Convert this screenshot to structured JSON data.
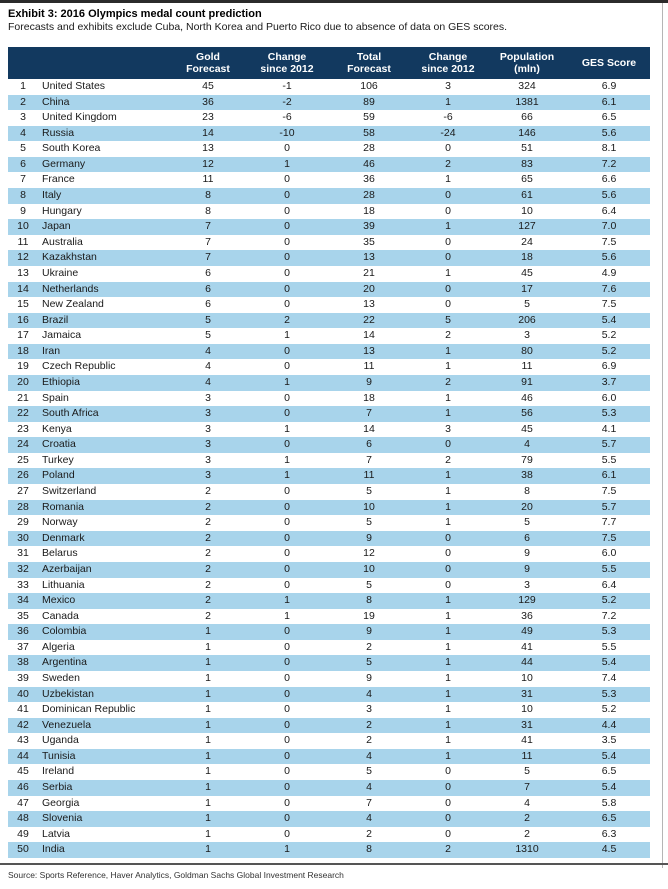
{
  "exhibit": {
    "title": "Exhibit 3: 2016 Olympics medal count prediction",
    "subtitle": "Forecasts and exhibits exclude Cuba, North Korea and Puerto Rico due to absence of data on GES scores.",
    "source": "Source: Sports Reference, Haver Analytics, Goldman Sachs Global Investment Research"
  },
  "colors": {
    "header_bg": "#12395F",
    "header_text": "#FFFFFF",
    "stripe": "#A8D4EB",
    "body_text": "#1A1A1A",
    "top_rule": "#2B2B2B"
  },
  "table": {
    "headers": [
      {
        "lines": []
      },
      {
        "lines": []
      },
      {
        "lines": [
          "Gold",
          "Forecast"
        ]
      },
      {
        "lines": [
          "Change",
          "since 2012"
        ]
      },
      {
        "lines": [
          "Total",
          "Forecast"
        ]
      },
      {
        "lines": [
          "Change",
          "since 2012"
        ]
      },
      {
        "lines": [
          "Population",
          "(mln)"
        ]
      },
      {
        "lines": [
          "GES Score"
        ]
      }
    ],
    "col_names": [
      "rank-cell",
      "country-cell",
      "gold-forecast-cell",
      "gold-change-cell",
      "total-forecast-cell",
      "total-change-cell",
      "population-cell",
      "ges-score-cell"
    ],
    "col_classes": [
      "col-rank",
      "col-country",
      "col-gold",
      "col-chg1",
      "col-total",
      "col-chg2",
      "col-pop",
      "col-ges"
    ],
    "rows": [
      [
        "1",
        "United States",
        "45",
        "-1",
        "106",
        "3",
        "324",
        "6.9"
      ],
      [
        "2",
        "China",
        "36",
        "-2",
        "89",
        "1",
        "1381",
        "6.1"
      ],
      [
        "3",
        "United Kingdom",
        "23",
        "-6",
        "59",
        "-6",
        "66",
        "6.5"
      ],
      [
        "4",
        "Russia",
        "14",
        "-10",
        "58",
        "-24",
        "146",
        "5.6"
      ],
      [
        "5",
        "South Korea",
        "13",
        "0",
        "28",
        "0",
        "51",
        "8.1"
      ],
      [
        "6",
        "Germany",
        "12",
        "1",
        "46",
        "2",
        "83",
        "7.2"
      ],
      [
        "7",
        "France",
        "11",
        "0",
        "36",
        "1",
        "65",
        "6.6"
      ],
      [
        "8",
        "Italy",
        "8",
        "0",
        "28",
        "0",
        "61",
        "5.6"
      ],
      [
        "9",
        "Hungary",
        "8",
        "0",
        "18",
        "0",
        "10",
        "6.4"
      ],
      [
        "10",
        "Japan",
        "7",
        "0",
        "39",
        "1",
        "127",
        "7.0"
      ],
      [
        "11",
        "Australia",
        "7",
        "0",
        "35",
        "0",
        "24",
        "7.5"
      ],
      [
        "12",
        "Kazakhstan",
        "7",
        "0",
        "13",
        "0",
        "18",
        "5.6"
      ],
      [
        "13",
        "Ukraine",
        "6",
        "0",
        "21",
        "1",
        "45",
        "4.9"
      ],
      [
        "14",
        "Netherlands",
        "6",
        "0",
        "20",
        "0",
        "17",
        "7.6"
      ],
      [
        "15",
        "New Zealand",
        "6",
        "0",
        "13",
        "0",
        "5",
        "7.5"
      ],
      [
        "16",
        "Brazil",
        "5",
        "2",
        "22",
        "5",
        "206",
        "5.4"
      ],
      [
        "17",
        "Jamaica",
        "5",
        "1",
        "14",
        "2",
        "3",
        "5.2"
      ],
      [
        "18",
        "Iran",
        "4",
        "0",
        "13",
        "1",
        "80",
        "5.2"
      ],
      [
        "19",
        "Czech Republic",
        "4",
        "0",
        "11",
        "1",
        "11",
        "6.9"
      ],
      [
        "20",
        "Ethiopia",
        "4",
        "1",
        "9",
        "2",
        "91",
        "3.7"
      ],
      [
        "21",
        "Spain",
        "3",
        "0",
        "18",
        "1",
        "46",
        "6.0"
      ],
      [
        "22",
        "South Africa",
        "3",
        "0",
        "7",
        "1",
        "56",
        "5.3"
      ],
      [
        "23",
        "Kenya",
        "3",
        "1",
        "14",
        "3",
        "45",
        "4.1"
      ],
      [
        "24",
        "Croatia",
        "3",
        "0",
        "6",
        "0",
        "4",
        "5.7"
      ],
      [
        "25",
        "Turkey",
        "3",
        "1",
        "7",
        "2",
        "79",
        "5.5"
      ],
      [
        "26",
        "Poland",
        "3",
        "1",
        "11",
        "1",
        "38",
        "6.1"
      ],
      [
        "27",
        "Switzerland",
        "2",
        "0",
        "5",
        "1",
        "8",
        "7.5"
      ],
      [
        "28",
        "Romania",
        "2",
        "0",
        "10",
        "1",
        "20",
        "5.7"
      ],
      [
        "29",
        "Norway",
        "2",
        "0",
        "5",
        "1",
        "5",
        "7.7"
      ],
      [
        "30",
        "Denmark",
        "2",
        "0",
        "9",
        "0",
        "6",
        "7.5"
      ],
      [
        "31",
        "Belarus",
        "2",
        "0",
        "12",
        "0",
        "9",
        "6.0"
      ],
      [
        "32",
        "Azerbaijan",
        "2",
        "0",
        "10",
        "0",
        "9",
        "5.5"
      ],
      [
        "33",
        "Lithuania",
        "2",
        "0",
        "5",
        "0",
        "3",
        "6.4"
      ],
      [
        "34",
        "Mexico",
        "2",
        "1",
        "8",
        "1",
        "129",
        "5.2"
      ],
      [
        "35",
        "Canada",
        "2",
        "1",
        "19",
        "1",
        "36",
        "7.2"
      ],
      [
        "36",
        "Colombia",
        "1",
        "0",
        "9",
        "1",
        "49",
        "5.3"
      ],
      [
        "37",
        "Algeria",
        "1",
        "0",
        "2",
        "1",
        "41",
        "5.5"
      ],
      [
        "38",
        "Argentina",
        "1",
        "0",
        "5",
        "1",
        "44",
        "5.4"
      ],
      [
        "39",
        "Sweden",
        "1",
        "0",
        "9",
        "1",
        "10",
        "7.4"
      ],
      [
        "40",
        "Uzbekistan",
        "1",
        "0",
        "4",
        "1",
        "31",
        "5.3"
      ],
      [
        "41",
        "Dominican Republic",
        "1",
        "0",
        "3",
        "1",
        "10",
        "5.2"
      ],
      [
        "42",
        "Venezuela",
        "1",
        "0",
        "2",
        "1",
        "31",
        "4.4"
      ],
      [
        "43",
        "Uganda",
        "1",
        "0",
        "2",
        "1",
        "41",
        "3.5"
      ],
      [
        "44",
        "Tunisia",
        "1",
        "0",
        "4",
        "1",
        "11",
        "5.4"
      ],
      [
        "45",
        "Ireland",
        "1",
        "0",
        "5",
        "0",
        "5",
        "6.5"
      ],
      [
        "46",
        "Serbia",
        "1",
        "0",
        "4",
        "0",
        "7",
        "5.4"
      ],
      [
        "47",
        "Georgia",
        "1",
        "0",
        "7",
        "0",
        "4",
        "5.8"
      ],
      [
        "48",
        "Slovenia",
        "1",
        "0",
        "4",
        "0",
        "2",
        "6.5"
      ],
      [
        "49",
        "Latvia",
        "1",
        "0",
        "2",
        "0",
        "2",
        "6.3"
      ],
      [
        "50",
        "India",
        "1",
        "1",
        "8",
        "2",
        "1310",
        "4.5"
      ]
    ]
  }
}
